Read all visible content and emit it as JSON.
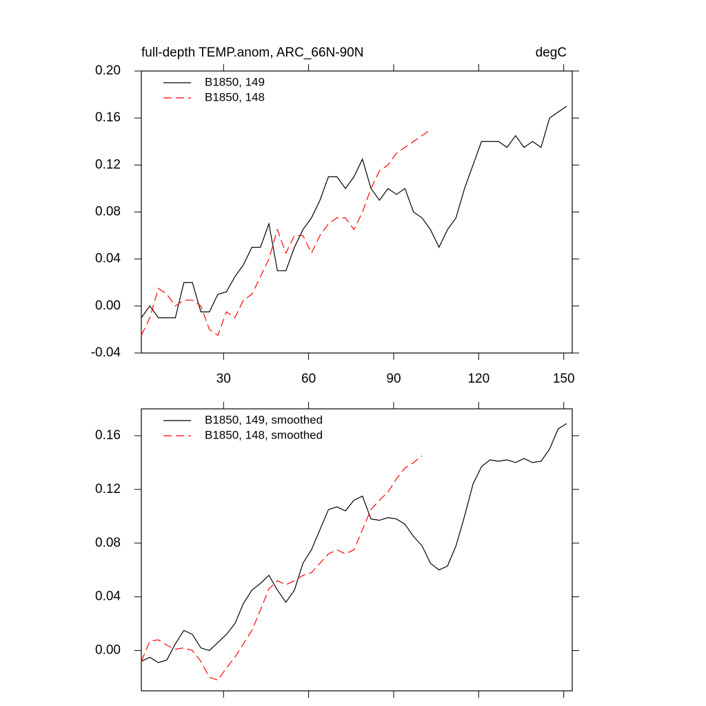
{
  "chart_data": [
    {
      "type": "line",
      "title": "full-depth TEMP.anom, ARC_66N-90N",
      "title_right": "degC",
      "x": [
        1,
        4,
        7,
        10,
        13,
        16,
        19,
        22,
        25,
        28,
        31,
        34,
        37,
        40,
        43,
        46,
        49,
        52,
        55,
        58,
        61,
        64,
        67,
        70,
        73,
        76,
        79,
        82,
        85,
        88,
        91,
        94,
        97,
        100,
        103,
        106,
        109,
        112,
        115,
        118,
        121,
        124,
        127,
        130,
        133,
        136,
        139,
        142,
        145,
        148,
        151
      ],
      "series": [
        {
          "name": "B1850, 149",
          "color": "#000000",
          "dash": "solid",
          "values": [
            -0.01,
            0.0,
            -0.01,
            -0.01,
            -0.01,
            0.02,
            0.02,
            -0.005,
            -0.005,
            0.01,
            0.012,
            0.025,
            0.035,
            0.05,
            0.05,
            0.07,
            0.03,
            0.03,
            0.05,
            0.065,
            0.075,
            0.09,
            0.11,
            0.11,
            0.1,
            0.11,
            0.125,
            0.1,
            0.09,
            0.1,
            0.095,
            0.1,
            0.08,
            0.075,
            0.065,
            0.05,
            0.065,
            0.075,
            0.1,
            0.12,
            0.14,
            0.14,
            0.14,
            0.135,
            0.145,
            0.135,
            0.14,
            0.135,
            0.16,
            0.165,
            0.17
          ]
        },
        {
          "name": "B1850, 148",
          "color": "#ff0000",
          "dash": "dashed",
          "values": [
            -0.025,
            -0.01,
            0.015,
            0.01,
            0.0,
            0.005,
            0.005,
            0.0,
            -0.02,
            -0.025,
            -0.005,
            -0.01,
            0.005,
            0.01,
            0.025,
            0.04,
            0.065,
            0.045,
            0.06,
            0.06,
            0.045,
            0.06,
            0.07,
            0.075,
            0.075,
            0.065,
            0.08,
            0.1,
            0.115,
            0.12,
            0.13,
            0.135,
            0.14,
            0.145,
            0.15,
            null,
            null,
            null,
            null,
            null,
            null,
            null,
            null,
            null,
            null,
            null,
            null,
            null,
            null,
            null,
            null
          ]
        }
      ],
      "xlim": [
        1,
        153
      ],
      "xticks": [
        30,
        60,
        90,
        120,
        150
      ],
      "xtick_labels": true,
      "ylim": [
        -0.04,
        0.2
      ],
      "yticks": [
        {
          "value": -0.04,
          "label": "-0.04"
        },
        {
          "value": 0,
          "label": "0.00"
        },
        {
          "value": 0.04,
          "label": "0.04"
        },
        {
          "value": 0.08,
          "label": "0.08"
        },
        {
          "value": 0.12,
          "label": "0.12"
        },
        {
          "value": 0.16,
          "label": "0.16"
        },
        {
          "value": 0.2,
          "label": "0.20"
        }
      ],
      "legend": "top-left"
    },
    {
      "type": "line",
      "x": [
        1,
        4,
        7,
        10,
        13,
        16,
        19,
        22,
        25,
        28,
        31,
        34,
        37,
        40,
        43,
        46,
        49,
        52,
        55,
        58,
        61,
        64,
        67,
        70,
        73,
        76,
        79,
        82,
        85,
        88,
        91,
        94,
        97,
        100,
        103,
        106,
        109,
        112,
        115,
        118,
        121,
        124,
        127,
        130,
        133,
        136,
        139,
        142,
        145,
        148,
        151
      ],
      "series": [
        {
          "name": "B1850, 149, smoothed",
          "color": "#000000",
          "dash": "solid",
          "values": [
            -0.008,
            -0.005,
            -0.009,
            -0.007,
            0.005,
            0.015,
            0.012,
            0.002,
            0.0,
            0.006,
            0.012,
            0.02,
            0.035,
            0.045,
            0.05,
            0.056,
            0.045,
            0.036,
            0.045,
            0.065,
            0.075,
            0.09,
            0.105,
            0.107,
            0.104,
            0.112,
            0.115,
            0.098,
            0.097,
            0.099,
            0.098,
            0.094,
            0.085,
            0.078,
            0.065,
            0.06,
            0.063,
            0.078,
            0.1,
            0.124,
            0.137,
            0.142,
            0.141,
            0.142,
            0.14,
            0.143,
            0.14,
            0.141,
            0.15,
            0.165,
            0.169
          ]
        },
        {
          "name": "B1850, 148, smoothed",
          "color": "#ff0000",
          "dash": "dashed",
          "values": [
            -0.008,
            0.007,
            0.008,
            0.004,
            0.001,
            0.002,
            0.0,
            -0.008,
            -0.02,
            -0.022,
            -0.013,
            -0.005,
            0.005,
            0.015,
            0.03,
            0.046,
            0.052,
            0.049,
            0.052,
            0.056,
            0.058,
            0.065,
            0.072,
            0.075,
            0.072,
            0.075,
            0.09,
            0.105,
            0.112,
            0.118,
            0.128,
            0.136,
            0.14,
            0.145,
            null,
            null,
            null,
            null,
            null,
            null,
            null,
            null,
            null,
            null,
            null,
            null,
            null,
            null,
            null,
            null,
            null
          ]
        }
      ],
      "xlim": [
        1,
        153
      ],
      "xticks": [
        30,
        60,
        90,
        120,
        150
      ],
      "xtick_labels": false,
      "ylim": [
        -0.03,
        0.18
      ],
      "yticks": [
        {
          "value": 0,
          "label": "0.00"
        },
        {
          "value": 0.04,
          "label": "0.04"
        },
        {
          "value": 0.08,
          "label": "0.08"
        },
        {
          "value": 0.12,
          "label": "0.12"
        },
        {
          "value": 0.16,
          "label": "0.16"
        }
      ],
      "legend": "top-left"
    }
  ]
}
